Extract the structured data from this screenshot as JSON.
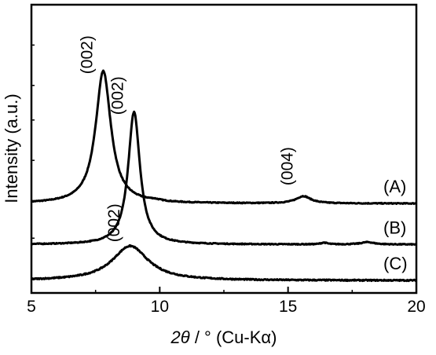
{
  "chart_data": {
    "type": "line",
    "xlabel": {
      "symbol": "2θ",
      "rest": " / ° (Cu-Kα)"
    },
    "ylabel": "Intensity (a.u.)",
    "xlim": [
      5,
      20
    ],
    "xticks": [
      5,
      10,
      15,
      20
    ],
    "ylim": [
      0,
      1
    ],
    "yticks_shown": false,
    "grid": false,
    "legend": "none",
    "series": [
      {
        "label": "(A)",
        "baseline": 0.31,
        "noise": 0.0015,
        "peaks": [
          {
            "hkl": "(002)",
            "center": 7.8,
            "height": 0.46,
            "width": 0.36
          },
          {
            "hkl": "(004)",
            "center": 15.6,
            "height": 0.025,
            "width": 0.35
          },
          {
            "hkl": "",
            "center": 9.8,
            "height": 0.004,
            "width": 0.3
          }
        ]
      },
      {
        "label": "(B)",
        "baseline": 0.168,
        "noise": 0.0015,
        "peaks": [
          {
            "hkl": "(002)",
            "center": 9.0,
            "height": 0.46,
            "width": 0.28
          },
          {
            "hkl": "",
            "center": 16.4,
            "height": 0.006,
            "width": 0.15
          },
          {
            "hkl": "",
            "center": 18.1,
            "height": 0.008,
            "width": 0.3
          }
        ]
      },
      {
        "label": "(C)",
        "baseline": 0.043,
        "noise": 0.002,
        "peaks": [
          {
            "hkl": "(002)",
            "center": 8.85,
            "height": 0.12,
            "width": 0.85
          }
        ]
      }
    ]
  }
}
